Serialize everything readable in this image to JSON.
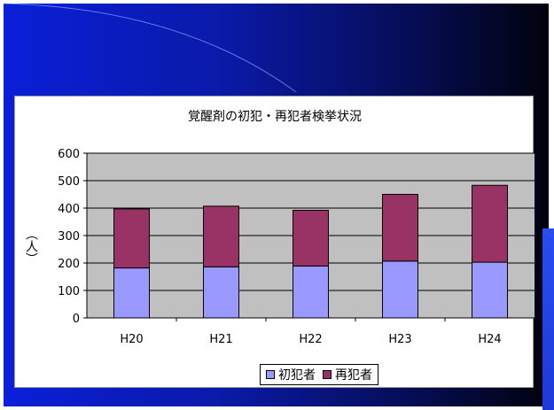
{
  "colors": {
    "slide_gradient": [
      "#0a1fd8",
      "#01020d"
    ],
    "plot_bg": "#c0c0c0",
    "first_time": "#9999ff",
    "repeat": "#993366"
  },
  "chart_data": {
    "type": "bar",
    "stacked": true,
    "title": "覚醒剤の初犯・再犯者検挙状況",
    "xlabel": "",
    "ylabel": "（人）",
    "categories": [
      "H20",
      "H21",
      "H22",
      "H23",
      "H24"
    ],
    "series": [
      {
        "name": "初犯者",
        "color": "#9999ff",
        "values": [
          182,
          186,
          189,
          207,
          203
        ]
      },
      {
        "name": "再犯者",
        "color": "#993366",
        "values": [
          215,
          221,
          203,
          243,
          280
        ]
      }
    ],
    "ylim": [
      0,
      600
    ],
    "yticks": [
      0,
      100,
      200,
      300,
      400,
      500,
      600
    ],
    "grid": true,
    "legend": "bottom"
  }
}
